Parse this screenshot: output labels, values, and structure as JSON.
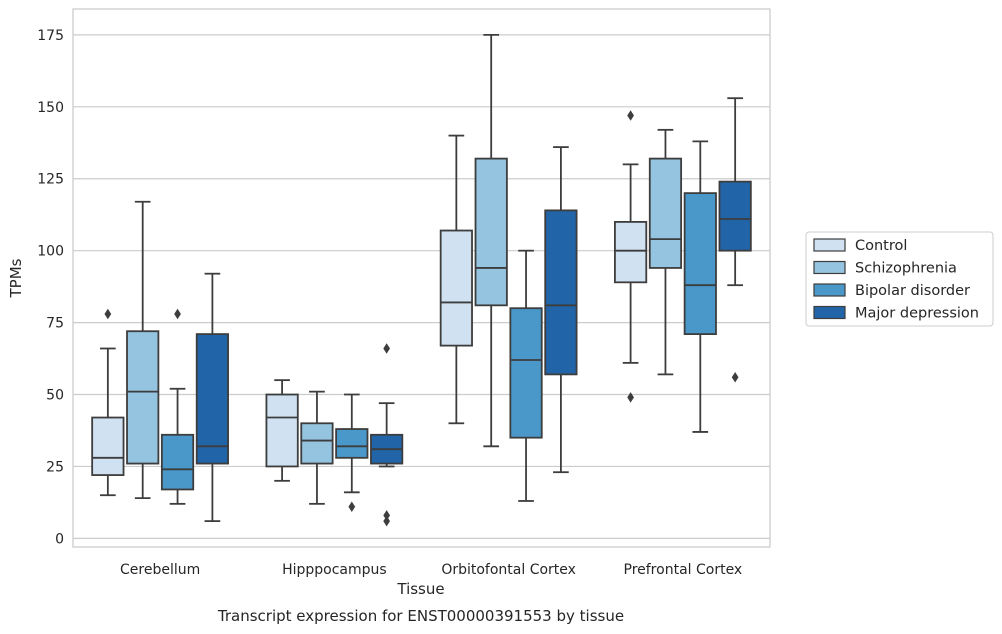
{
  "caption": "Transcript expression for ENST00000391553 by tissue",
  "chart_data": {
    "type": "box",
    "xlabel": "Tissue",
    "ylabel": "TPMs",
    "ylim": [
      -3,
      184
    ],
    "yticks": [
      0,
      25,
      50,
      75,
      100,
      125,
      150,
      175
    ],
    "grid": "horizontal",
    "legend_position": "right",
    "categories": [
      "Cerebellum",
      "Hipppocampus",
      "Orbitofontal Cortex",
      "Prefrontal Cortex"
    ],
    "series": [
      {
        "name": "Control",
        "color": "#d0e1f2",
        "boxes": [
          {
            "whislo": 15,
            "q1": 22,
            "med": 28,
            "q3": 42,
            "whishi": 66,
            "fliers": [
              78
            ]
          },
          {
            "whislo": 20,
            "q1": 25,
            "med": 42,
            "q3": 50,
            "whishi": 55,
            "fliers": []
          },
          {
            "whislo": 40,
            "q1": 67,
            "med": 82,
            "q3": 107,
            "whishi": 140,
            "fliers": []
          },
          {
            "whislo": 61,
            "q1": 89,
            "med": 100,
            "q3": 110,
            "whishi": 130,
            "fliers": [
              49,
              147
            ]
          }
        ]
      },
      {
        "name": "Schizophrenia",
        "color": "#94c4df",
        "boxes": [
          {
            "whislo": 14,
            "q1": 26,
            "med": 51,
            "q3": 72,
            "whishi": 117,
            "fliers": []
          },
          {
            "whislo": 12,
            "q1": 26,
            "med": 34,
            "q3": 40,
            "whishi": 51,
            "fliers": []
          },
          {
            "whislo": 32,
            "q1": 81,
            "med": 94,
            "q3": 132,
            "whishi": 175,
            "fliers": []
          },
          {
            "whislo": 57,
            "q1": 94,
            "med": 104,
            "q3": 132,
            "whishi": 142,
            "fliers": []
          }
        ]
      },
      {
        "name": "Bipolar disorder",
        "color": "#4a98c9",
        "boxes": [
          {
            "whislo": 12,
            "q1": 17,
            "med": 24,
            "q3": 36,
            "whishi": 52,
            "fliers": [
              78
            ]
          },
          {
            "whislo": 16,
            "q1": 28,
            "med": 32,
            "q3": 38,
            "whishi": 50,
            "fliers": [
              11
            ]
          },
          {
            "whislo": 13,
            "q1": 35,
            "med": 62,
            "q3": 80,
            "whishi": 100,
            "fliers": []
          },
          {
            "whislo": 37,
            "q1": 71,
            "med": 88,
            "q3": 120,
            "whishi": 138,
            "fliers": []
          }
        ]
      },
      {
        "name": "Major depression",
        "color": "#2264a8",
        "boxes": [
          {
            "whislo": 6,
            "q1": 26,
            "med": 32,
            "q3": 71,
            "whishi": 92,
            "fliers": []
          },
          {
            "whislo": 25,
            "q1": 26,
            "med": 31,
            "q3": 36,
            "whishi": 47,
            "fliers": [
              6,
              8,
              66
            ]
          },
          {
            "whislo": 23,
            "q1": 57,
            "med": 81,
            "q3": 114,
            "whishi": 136,
            "fliers": []
          },
          {
            "whislo": 88,
            "q1": 100,
            "med": 111,
            "q3": 124,
            "whishi": 153,
            "fliers": [
              56
            ]
          }
        ]
      }
    ]
  }
}
